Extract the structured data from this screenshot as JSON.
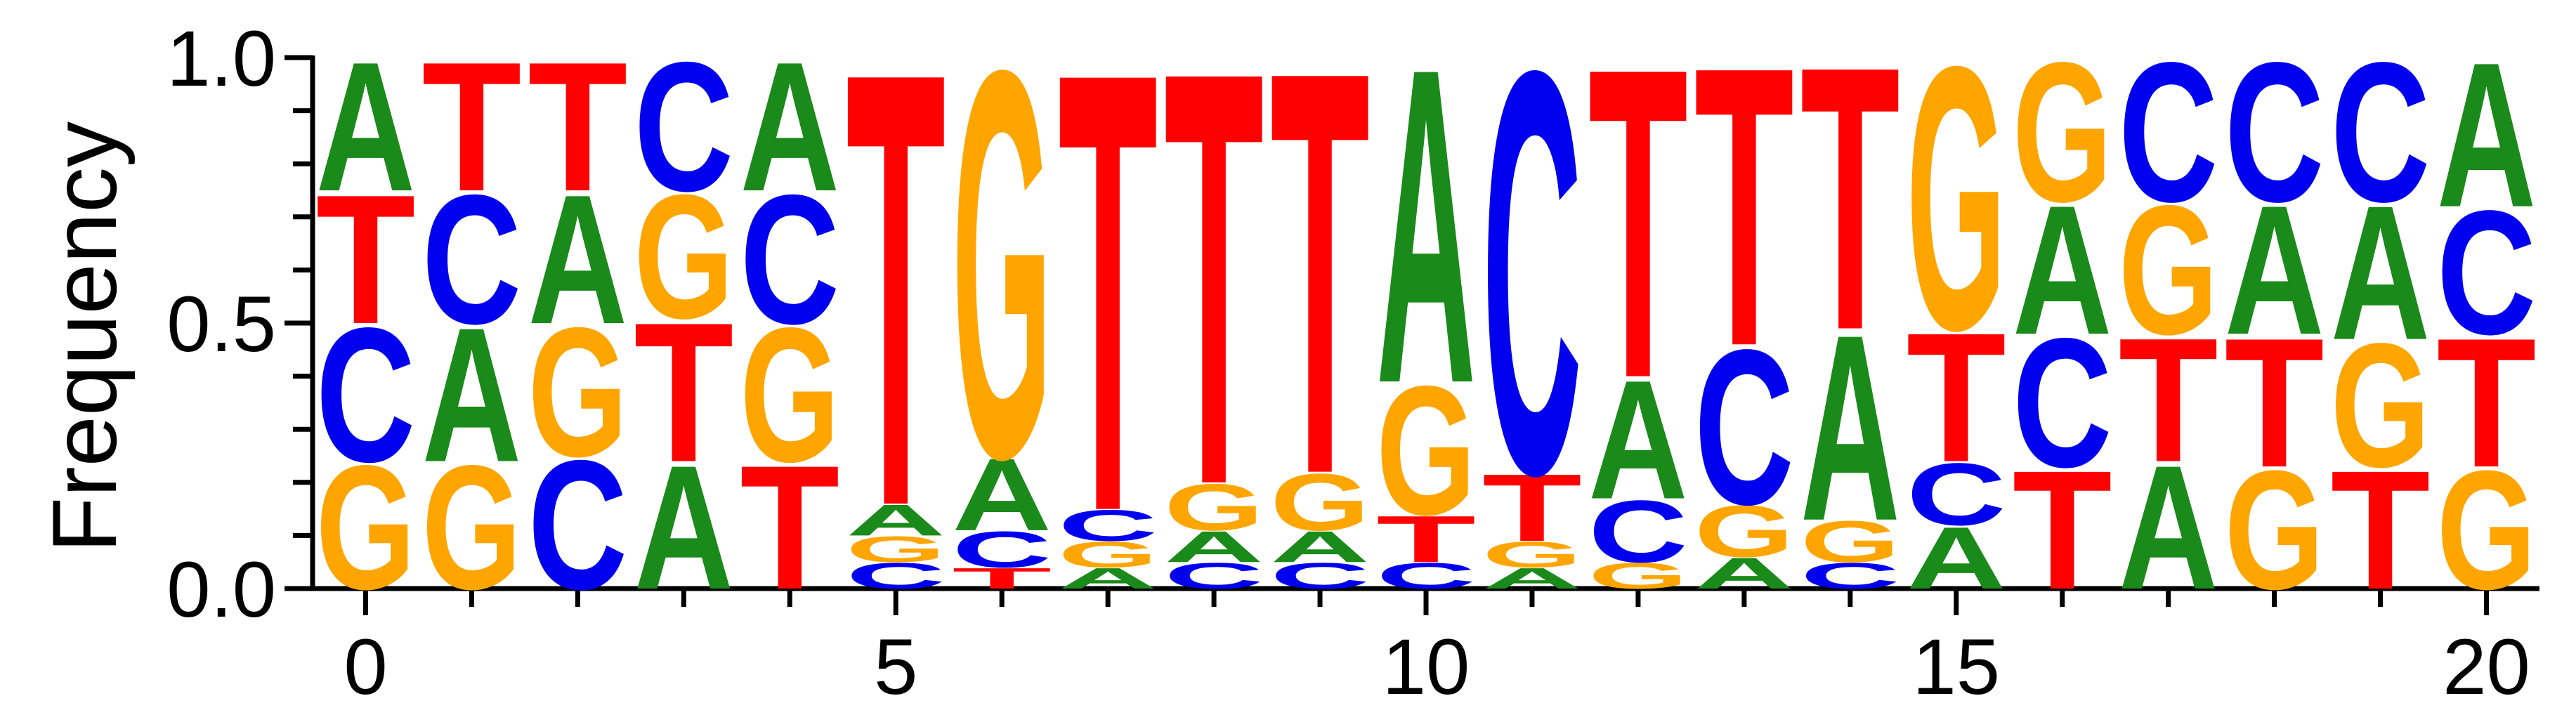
{
  "chart_data": {
    "type": "sequence-logo",
    "ylabel": "Frequency",
    "xlim": [
      -0.5,
      20.5
    ],
    "ylim": [
      0,
      1
    ],
    "y_ticks": [
      0.0,
      0.5,
      1.0
    ],
    "y_tick_labels": [
      "0.0",
      "0.5",
      "1.0"
    ],
    "x_ticks": [
      0,
      5,
      10,
      15,
      20
    ],
    "x_tick_labels": [
      "0",
      "5",
      "10",
      "15",
      "20"
    ],
    "colors": {
      "A": "#1a8a1a",
      "C": "#0000ee",
      "G": "#ffa500",
      "T": "#ff0000"
    },
    "positions": [
      [
        [
          "G",
          0.24
        ],
        [
          "C",
          0.26
        ],
        [
          "T",
          0.25
        ],
        [
          "A",
          0.25
        ]
      ],
      [
        [
          "G",
          0.24
        ],
        [
          "A",
          0.26
        ],
        [
          "C",
          0.25
        ],
        [
          "T",
          0.25
        ]
      ],
      [
        [
          "C",
          0.25
        ],
        [
          "G",
          0.25
        ],
        [
          "A",
          0.25
        ],
        [
          "T",
          0.25
        ]
      ],
      [
        [
          "A",
          0.24
        ],
        [
          "T",
          0.27
        ],
        [
          "G",
          0.24
        ],
        [
          "C",
          0.25
        ]
      ],
      [
        [
          "T",
          0.24
        ],
        [
          "G",
          0.26
        ],
        [
          "C",
          0.25
        ],
        [
          "A",
          0.25
        ]
      ],
      [
        [
          "C",
          0.05
        ],
        [
          "G",
          0.05
        ],
        [
          "A",
          0.06
        ],
        [
          "T",
          0.84
        ]
      ],
      [
        [
          "T",
          0.04
        ],
        [
          "C",
          0.07
        ],
        [
          "A",
          0.14
        ],
        [
          "G",
          0.75
        ]
      ],
      [
        [
          "A",
          0.04
        ],
        [
          "G",
          0.05
        ],
        [
          "C",
          0.06
        ],
        [
          "T",
          0.85
        ]
      ],
      [
        [
          "C",
          0.05
        ],
        [
          "A",
          0.06
        ],
        [
          "G",
          0.09
        ],
        [
          "T",
          0.8
        ]
      ],
      [
        [
          "C",
          0.05
        ],
        [
          "A",
          0.06
        ],
        [
          "G",
          0.11
        ],
        [
          "T",
          0.78
        ]
      ],
      [
        [
          "C",
          0.05
        ],
        [
          "T",
          0.09
        ],
        [
          "G",
          0.25
        ],
        [
          "A",
          0.61
        ]
      ],
      [
        [
          "A",
          0.04
        ],
        [
          "G",
          0.05
        ],
        [
          "T",
          0.13
        ],
        [
          "C",
          0.78
        ]
      ],
      [
        [
          "G",
          0.05
        ],
        [
          "C",
          0.12
        ],
        [
          "A",
          0.23
        ],
        [
          "T",
          0.6
        ]
      ],
      [
        [
          "A",
          0.06
        ],
        [
          "G",
          0.1
        ],
        [
          "C",
          0.3
        ],
        [
          "T",
          0.54
        ]
      ],
      [
        [
          "C",
          0.05
        ],
        [
          "G",
          0.08
        ],
        [
          "A",
          0.36
        ],
        [
          "T",
          0.51
        ]
      ],
      [
        [
          "A",
          0.12
        ],
        [
          "C",
          0.12
        ],
        [
          "T",
          0.25
        ],
        [
          "G",
          0.51
        ]
      ],
      [
        [
          "T",
          0.23
        ],
        [
          "C",
          0.25
        ],
        [
          "A",
          0.25
        ],
        [
          "G",
          0.27
        ]
      ],
      [
        [
          "A",
          0.24
        ],
        [
          "T",
          0.24
        ],
        [
          "G",
          0.25
        ],
        [
          "C",
          0.27
        ]
      ],
      [
        [
          "G",
          0.23
        ],
        [
          "T",
          0.25
        ],
        [
          "A",
          0.25
        ],
        [
          "C",
          0.27
        ]
      ],
      [
        [
          "T",
          0.23
        ],
        [
          "G",
          0.24
        ],
        [
          "A",
          0.26
        ],
        [
          "C",
          0.27
        ]
      ],
      [
        [
          "G",
          0.23
        ],
        [
          "T",
          0.25
        ],
        [
          "C",
          0.24
        ],
        [
          "A",
          0.28
        ]
      ]
    ]
  }
}
